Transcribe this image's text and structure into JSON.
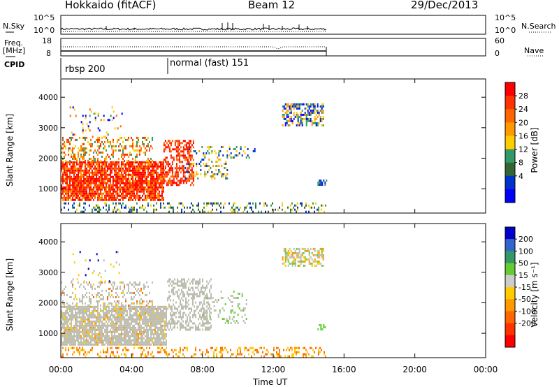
{
  "header": {
    "title": "Hokkaido (fitACF)",
    "beam": "Beam 12",
    "date": "29/Dec/2013"
  },
  "panels": {
    "nsky": {
      "label": "N.Sky",
      "ticks": [
        "10^5",
        "10^0"
      ],
      "right_label": "N.Search",
      "right_ticks": [
        "10^5",
        "10^0"
      ]
    },
    "freq": {
      "label_line1": "Freq.",
      "label_line2": "[MHz]",
      "ticks": [
        "18",
        "8"
      ],
      "right_label": "Nave",
      "right_ticks": [
        "60",
        "0"
      ]
    },
    "cpid": {
      "label": "CPID",
      "modes": [
        "rbsp 200",
        "normal (fast) 151"
      ]
    }
  },
  "chart_data": [
    {
      "type": "heatmap",
      "name": "power",
      "ylabel": "Slant Range [km]",
      "yticks": [
        1000,
        2000,
        3000,
        4000
      ],
      "ylim": [
        200,
        4600
      ],
      "xlim_hours": [
        0,
        24
      ],
      "data_coverage_hours": [
        0,
        15
      ],
      "colorbar": {
        "label": "Power [dB]",
        "ticks": [
          "28",
          "24",
          "20",
          "16",
          "12",
          "8",
          "4"
        ],
        "colors": [
          "#ff0000",
          "#ff3300",
          "#ff6600",
          "#ff9900",
          "#ffcc00",
          "#339966",
          "#336633",
          "#0033cc",
          "#0000ff"
        ]
      }
    },
    {
      "type": "heatmap",
      "name": "velocity",
      "ylabel": "Slant Range [km]",
      "yticks": [
        1000,
        2000,
        3000,
        4000
      ],
      "ylim": [
        200,
        4600
      ],
      "xlim_hours": [
        0,
        24
      ],
      "data_coverage_hours": [
        0,
        15
      ],
      "ground_scatter_color": "#bdbdb0",
      "colorbar": {
        "label": "Velocity [m s⁻¹]",
        "ticks": [
          "200",
          "100",
          "50",
          "15",
          "-15",
          "-50",
          "-100",
          "-200"
        ],
        "colors": [
          "#0000cc",
          "#3366cc",
          "#339966",
          "#66cc33",
          "#cccccc",
          "#ffcc00",
          "#ff9900",
          "#ff6600",
          "#ff3300",
          "#ff0000"
        ]
      }
    }
  ],
  "xaxis": {
    "label": "Time UT",
    "ticks": [
      "00:00",
      "04:00",
      "08:00",
      "12:00",
      "16:00",
      "20:00",
      "00:00"
    ]
  }
}
